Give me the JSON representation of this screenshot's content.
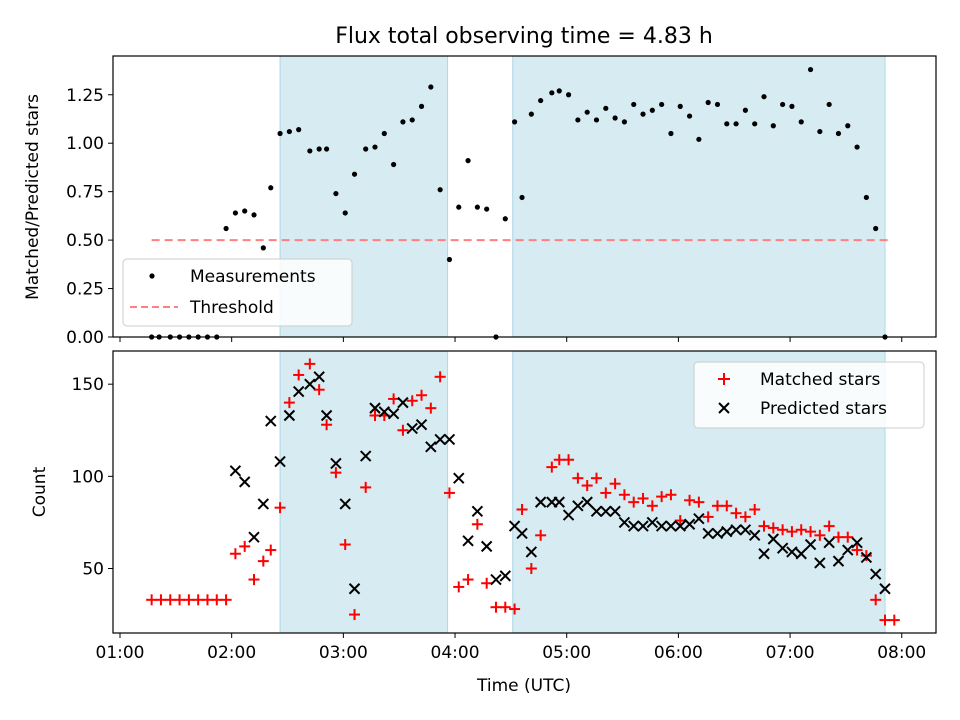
{
  "title": "Flux total observing time = 4.83 h",
  "chart_data": [
    {
      "type": "scatter",
      "ylabel": "Matched/Predicted stars",
      "ylim": [
        0,
        1.45
      ],
      "yticks": [
        "0.00",
        "0.25",
        "0.50",
        "0.75",
        "1.00",
        "1.25"
      ],
      "legend_placement": "lower-left",
      "series": [
        {
          "name": "Measurements",
          "marker": "dot",
          "color": "#000000",
          "x": [
            "01:17",
            "01:21",
            "01:27",
            "01:32",
            "01:37",
            "01:42",
            "01:47",
            "01:52",
            "01:57",
            "02:02",
            "02:07",
            "02:12",
            "02:17",
            "02:21",
            "02:26",
            "02:31",
            "02:36",
            "02:42",
            "02:47",
            "02:51",
            "02:56",
            "03:01",
            "03:06",
            "03:12",
            "03:17",
            "03:22",
            "03:27",
            "03:32",
            "03:37",
            "03:42",
            "03:47",
            "03:52",
            "03:57",
            "04:02",
            "04:07",
            "04:12",
            "04:17",
            "04:22",
            "04:27",
            "04:32",
            "04:36",
            "04:41",
            "04:46",
            "04:52",
            "04:56",
            "05:01",
            "05:06",
            "05:11",
            "05:16",
            "05:21",
            "05:26",
            "05:31",
            "05:36",
            "05:41",
            "05:46",
            "05:51",
            "05:56",
            "06:01",
            "06:06",
            "06:11",
            "06:16",
            "06:21",
            "06:26",
            "06:31",
            "06:36",
            "06:41",
            "06:46",
            "06:51",
            "06:56",
            "07:01",
            "07:06",
            "07:11",
            "07:16",
            "07:21",
            "07:26",
            "07:31",
            "07:36",
            "07:41",
            "07:46",
            "07:51"
          ],
          "y": [
            0,
            0,
            0,
            0,
            0,
            0,
            0,
            0,
            0.56,
            0.64,
            0.65,
            0.63,
            0.46,
            0.77,
            1.05,
            1.06,
            1.07,
            0.96,
            0.97,
            0.97,
            0.74,
            0.64,
            0.84,
            0.97,
            0.98,
            1.05,
            0.89,
            1.11,
            1.12,
            1.19,
            1.29,
            0.76,
            0.4,
            0.67,
            0.91,
            0.67,
            0.66,
            0,
            0.61,
            1.11,
            0.72,
            1.15,
            1.22,
            1.26,
            1.27,
            1.25,
            1.12,
            1.16,
            1.12,
            1.18,
            1.13,
            1.11,
            1.2,
            1.15,
            1.17,
            1.2,
            1.05,
            1.19,
            1.14,
            1.02,
            1.21,
            1.2,
            1.1,
            1.1,
            1.17,
            1.1,
            1.24,
            1.09,
            1.2,
            1.19,
            1.11,
            1.38,
            1.06,
            1.2,
            1.05,
            1.09,
            0.98,
            0.72,
            0.56,
            0
          ]
        },
        {
          "name": "Threshold",
          "style": "dashed",
          "color": "#ff8080",
          "x": [
            "01:17",
            "07:53"
          ],
          "y": [
            0.5,
            0.5
          ]
        }
      ]
    },
    {
      "type": "scatter",
      "xlabel": "Time (UTC)",
      "ylabel": "Count",
      "ylim": [
        15,
        168
      ],
      "yticks": [
        "50",
        "100",
        "150"
      ],
      "xticks": [
        "01:00",
        "02:00",
        "03:00",
        "04:00",
        "05:00",
        "06:00",
        "07:00",
        "08:00"
      ],
      "legend_placement": "upper-right",
      "series": [
        {
          "name": "Matched stars",
          "marker": "plus",
          "color": "#ff0000",
          "x": [
            "01:17",
            "01:22",
            "01:27",
            "01:32",
            "01:37",
            "01:42",
            "01:47",
            "01:52",
            "01:57",
            "02:02",
            "02:07",
            "02:12",
            "02:17",
            "02:21",
            "02:26",
            "02:31",
            "02:36",
            "02:42",
            "02:47",
            "02:51",
            "02:56",
            "03:01",
            "03:06",
            "03:12",
            "03:17",
            "03:22",
            "03:27",
            "03:32",
            "03:37",
            "03:42",
            "03:47",
            "03:52",
            "03:57",
            "04:02",
            "04:07",
            "04:12",
            "04:17",
            "04:22",
            "04:27",
            "04:32",
            "04:36",
            "04:41",
            "04:46",
            "04:52",
            "04:56",
            "05:01",
            "05:06",
            "05:11",
            "05:16",
            "05:21",
            "05:26",
            "05:31",
            "05:36",
            "05:41",
            "05:46",
            "05:51",
            "05:56",
            "06:01",
            "06:06",
            "06:11",
            "06:16",
            "06:21",
            "06:26",
            "06:31",
            "06:36",
            "06:41",
            "06:46",
            "06:51",
            "06:56",
            "07:01",
            "07:06",
            "07:11",
            "07:16",
            "07:21",
            "07:26",
            "07:31",
            "07:36",
            "07:41",
            "07:46",
            "07:51",
            "07:56"
          ],
          "y": [
            33,
            33,
            33,
            33,
            33,
            33,
            33,
            33,
            33,
            58,
            62,
            44,
            54,
            60,
            83,
            140,
            155,
            161,
            147,
            128,
            102,
            63,
            25,
            94,
            133,
            133,
            142,
            125,
            141,
            144,
            137,
            154,
            91,
            40,
            44,
            74,
            42,
            29,
            29,
            28,
            82,
            50,
            68,
            105,
            109,
            109,
            99,
            95,
            99,
            91,
            96,
            90,
            86,
            88,
            84,
            89,
            90,
            76,
            87,
            86,
            78,
            84,
            84,
            80,
            78,
            82,
            73,
            72,
            71,
            70,
            71,
            70,
            68,
            73,
            67,
            67,
            60,
            57,
            33,
            22,
            22
          ]
        },
        {
          "name": "Predicted stars",
          "marker": "x",
          "color": "#000000",
          "x": [
            "02:02",
            "02:07",
            "02:12",
            "02:17",
            "02:21",
            "02:26",
            "02:31",
            "02:36",
            "02:42",
            "02:47",
            "02:51",
            "02:56",
            "03:01",
            "03:06",
            "03:12",
            "03:17",
            "03:22",
            "03:27",
            "03:32",
            "03:37",
            "03:42",
            "03:47",
            "03:52",
            "03:57",
            "04:02",
            "04:07",
            "04:12",
            "04:17",
            "04:22",
            "04:27",
            "04:32",
            "04:36",
            "04:41",
            "04:46",
            "04:52",
            "04:56",
            "05:01",
            "05:06",
            "05:11",
            "05:16",
            "05:21",
            "05:26",
            "05:31",
            "05:36",
            "05:41",
            "05:46",
            "05:51",
            "05:56",
            "06:01",
            "06:06",
            "06:11",
            "06:16",
            "06:21",
            "06:26",
            "06:31",
            "06:36",
            "06:41",
            "06:46",
            "06:51",
            "06:56",
            "07:01",
            "07:06",
            "07:11",
            "07:16",
            "07:21",
            "07:26",
            "07:31",
            "07:36",
            "07:41",
            "07:46",
            "07:51"
          ],
          "y": [
            103,
            97,
            67,
            85,
            130,
            108,
            133,
            146,
            150,
            154,
            133,
            107,
            85,
            39,
            111,
            137,
            135,
            134,
            140,
            126,
            128,
            116,
            120,
            120,
            99,
            65,
            81,
            62,
            44,
            46,
            73,
            69,
            59,
            86,
            86,
            86,
            79,
            84,
            86,
            81,
            81,
            81,
            75,
            73,
            73,
            75,
            73,
            73,
            73,
            74,
            77,
            69,
            69,
            70,
            71,
            71,
            68,
            58,
            66,
            61,
            59,
            58,
            63,
            53,
            64,
            54,
            60,
            64,
            56,
            47,
            39
          ]
        }
      ]
    }
  ],
  "shaded_intervals": [
    [
      "02:26",
      "03:56"
    ],
    [
      "04:31",
      "07:51"
    ]
  ],
  "colors": {
    "shade": "#add8e6",
    "threshold": "#ff8080",
    "matched": "#ff0000",
    "predicted": "#000000"
  }
}
